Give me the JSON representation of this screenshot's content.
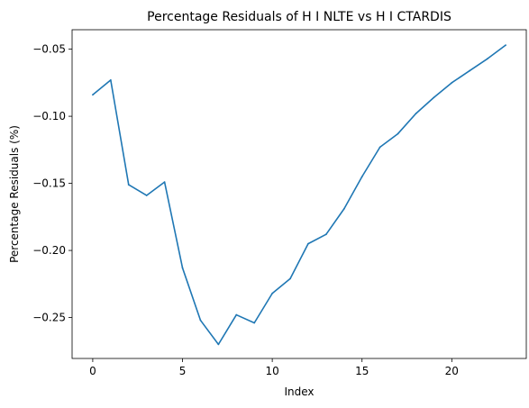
{
  "chart_data": {
    "type": "line",
    "title": "Percentage Residuals of H I NLTE vs H I CTARDIS",
    "xlabel": "Index",
    "ylabel": "Percentage Residuals (%)",
    "xlim": [
      -1.15,
      24.15
    ],
    "ylim": [
      -0.2805,
      -0.0355
    ],
    "xticks": [
      0,
      5,
      10,
      15,
      20
    ],
    "yticks": [
      -0.25,
      -0.2,
      -0.15,
      -0.1,
      -0.05
    ],
    "ytick_labels": [
      "−0.25",
      "−0.20",
      "−0.15",
      "−0.10",
      "−0.05"
    ],
    "grid": false,
    "series": [
      {
        "color": "#1f77b4",
        "x": [
          0,
          1,
          2,
          3,
          4,
          5,
          6,
          7,
          8,
          9,
          10,
          11,
          12,
          13,
          14,
          15,
          16,
          17,
          18,
          19,
          20,
          21,
          22,
          23
        ],
        "values": [
          -0.084,
          -0.073,
          -0.151,
          -0.159,
          -0.149,
          -0.213,
          -0.252,
          -0.27,
          -0.248,
          -0.254,
          -0.232,
          -0.221,
          -0.195,
          -0.188,
          -0.169,
          -0.145,
          -0.123,
          -0.113,
          -0.098,
          -0.086,
          -0.075,
          -0.066,
          -0.057,
          -0.047
        ]
      }
    ]
  }
}
